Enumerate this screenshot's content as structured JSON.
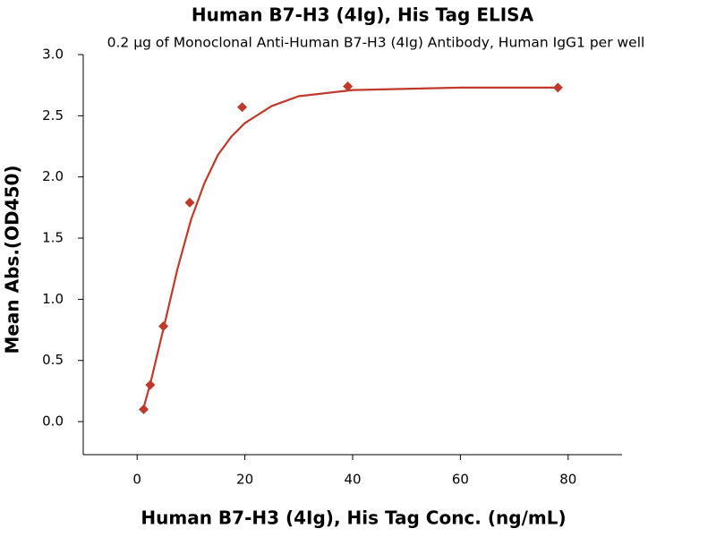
{
  "chart_data": {
    "type": "scatter",
    "title": "Human B7-H3 (4Ig), His Tag ELISA",
    "subtitle": "0.2 μg of Monoclonal Anti-Human B7-H3 (4Ig) Antibody, Human IgG1 per well",
    "x_label": "Human B7-H3 (4Ig), His Tag Conc. (ng/mL)",
    "y_label": "Mean Abs.(OD450)",
    "x": [
      1.22,
      2.44,
      4.88,
      9.77,
      19.5,
      39.1,
      78.1
    ],
    "values": [
      0.1,
      0.3,
      0.78,
      1.79,
      2.57,
      2.74,
      2.73
    ],
    "color": "#c0392b",
    "curve": {
      "x": [
        1,
        2.5,
        5,
        7.5,
        10,
        12.5,
        15,
        17.5,
        20,
        25,
        30,
        40,
        50,
        60,
        78
      ],
      "values": [
        0.08,
        0.32,
        0.78,
        1.25,
        1.65,
        1.95,
        2.18,
        2.33,
        2.44,
        2.58,
        2.66,
        2.71,
        2.72,
        2.73,
        2.73
      ]
    },
    "xlim": [
      -10,
      90
    ],
    "ylim": [
      -0.27,
      3.0
    ],
    "xticks": [
      0,
      20,
      40,
      60,
      80
    ],
    "yticks": [
      {
        "value": 0,
        "label": "0.0"
      },
      0.5,
      {
        "value": 1,
        "label": "1.0"
      },
      1.5,
      {
        "value": 2,
        "label": "2.0"
      },
      2.5,
      {
        "value": 3,
        "label": "3.0"
      }
    ]
  }
}
